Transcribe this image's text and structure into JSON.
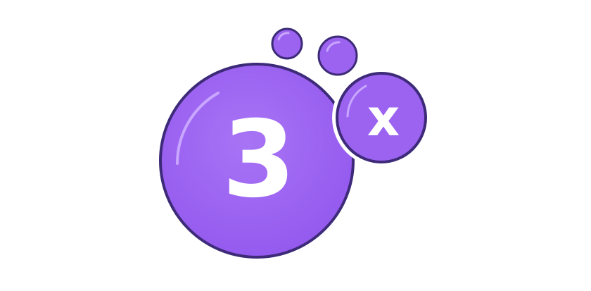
{
  "badge": {
    "number_text": "3",
    "multiplier_text": "x"
  },
  "colors": {
    "bubble_fill": "#9b63f0",
    "bubble_outline": "#3d2a78",
    "highlight": "#c9a6ff",
    "text": "#ffffff",
    "background": "#ffffff"
  }
}
